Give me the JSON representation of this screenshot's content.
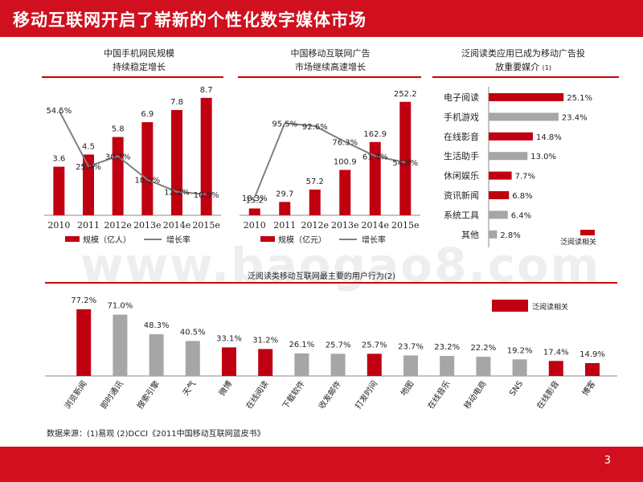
{
  "title": "移动互联网开启了崭新的个性化数字媒体市场",
  "watermark": "www.baogao8.com",
  "source": "数据来源：(1)易观  (2)DCCI《2011中国移动互联网蓝皮书》",
  "page_number": "3",
  "colors": {
    "red": "#c00010",
    "gray": "#a6a6a6",
    "line": "#7f7f7f",
    "accent": "#d0101e"
  },
  "chart_data": [
    {
      "id": "mobile-users",
      "type": "bar",
      "title_lines": [
        "中国手机网民规模",
        "持续稳定增长"
      ],
      "categories": [
        "2010",
        "2011",
        "2012e",
        "2013e",
        "2014e",
        "2015e"
      ],
      "series": [
        {
          "name": "规模（亿人）",
          "type": "bar",
          "values": [
            3.6,
            4.5,
            5.8,
            6.9,
            7.8,
            8.7
          ]
        },
        {
          "name": "增长率",
          "type": "line",
          "values": [
            54.5,
            25.4,
            30.7,
            18.5,
            12.2,
            10.9
          ]
        }
      ],
      "value_labels": [
        "3.6",
        "4.5",
        "5.8",
        "6.9",
        "7.8",
        "8.7"
      ],
      "rate_labels": [
        "54.5%",
        "25.4%",
        "30.7%",
        "18.5%",
        "12.2%",
        "10.9%"
      ],
      "ylim": [
        0,
        10
      ],
      "line_ylim": [
        0,
        70
      ],
      "legend": [
        "规模（亿人）",
        "增长率"
      ],
      "legend_position": "bottom"
    },
    {
      "id": "mobile-ads",
      "type": "bar",
      "title_lines": [
        "中国移动互联网广告",
        "市场继续高速增长"
      ],
      "categories": [
        "2010",
        "2011",
        "2012e",
        "2013e",
        "2014e",
        "2015e"
      ],
      "series": [
        {
          "name": "规模（亿元）",
          "type": "bar",
          "values": [
            15.2,
            29.7,
            57.2,
            100.9,
            162.9,
            252.2
          ]
        },
        {
          "name": "增长率",
          "type": "line",
          "values": [
            18.3,
            95.5,
            92.6,
            76.3,
            61.4,
            54.8
          ]
        }
      ],
      "value_labels": [
        "15.2",
        "29.7",
        "57.2",
        "100.9",
        "162.9",
        "252.2"
      ],
      "rate_labels": [
        "18.3%",
        "95.5%",
        "92.6%",
        "76.3%",
        "61.4%",
        "54.8%"
      ],
      "ylim": [
        0,
        300
      ],
      "line_ylim": [
        0,
        140
      ],
      "legend": [
        "规模（亿元）",
        "增长率"
      ],
      "legend_position": "bottom"
    },
    {
      "id": "ad-media-share",
      "type": "bar",
      "orientation": "horizontal",
      "title_lines": [
        "泛阅读类应用已成为移动广告投",
        "放重要媒介"
      ],
      "title_superscript": "(1)",
      "categories": [
        "电子阅读",
        "手机游戏",
        "在线影音",
        "生活助手",
        "休闲娱乐",
        "资讯新闻",
        "系统工具",
        "其他"
      ],
      "values": [
        25.1,
        23.4,
        14.8,
        13.0,
        7.7,
        6.8,
        6.4,
        2.8
      ],
      "value_labels": [
        "25.1%",
        "23.4%",
        "14.8%",
        "13.0%",
        "7.7%",
        "6.8%",
        "6.4%",
        "2.8%"
      ],
      "highlight": [
        true,
        false,
        true,
        false,
        true,
        true,
        false,
        false
      ],
      "xlim": [
        0,
        28
      ],
      "legend": [
        "泛阅读相关"
      ],
      "legend_position": "bottom-right"
    },
    {
      "id": "user-behavior",
      "type": "bar",
      "title": "泛阅读类移动互联网最主要的用户行为(2)",
      "categories": [
        "浏览新闻",
        "即时通讯",
        "搜索引擎",
        "天气",
        "微博",
        "在线阅读",
        "下载软件",
        "收发邮件",
        "打发时间",
        "地图",
        "在线音乐",
        "移动电商",
        "SNS",
        "在线影音",
        "博客"
      ],
      "values": [
        77.2,
        71.0,
        48.3,
        40.5,
        33.1,
        31.2,
        26.1,
        25.7,
        25.7,
        23.7,
        23.2,
        22.2,
        19.2,
        17.4,
        14.9
      ],
      "value_labels": [
        "77.2%",
        "71.0%",
        "48.3%",
        "40.5%",
        "33.1%",
        "31.2%",
        "26.1%",
        "25.7%",
        "25.7%",
        "23.7%",
        "23.2%",
        "22.2%",
        "19.2%",
        "17.4%",
        "14.9%"
      ],
      "highlight": [
        true,
        false,
        false,
        false,
        true,
        true,
        false,
        false,
        true,
        false,
        false,
        false,
        false,
        true,
        true
      ],
      "ylim": [
        0,
        100
      ],
      "legend": [
        "泛阅读相关"
      ],
      "legend_position": "top-right"
    }
  ]
}
